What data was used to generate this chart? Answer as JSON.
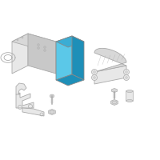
{
  "background_color": "#ffffff",
  "line_color": "#aaaaaa",
  "line_color_dark": "#888888",
  "highlight_color": "#5bc8e8",
  "highlight_mid": "#3aadd4",
  "highlight_dark": "#1e8fb8",
  "gray_light": "#e8e8e8",
  "gray_mid": "#d8d8d8",
  "gray_dark": "#c8c8c8",
  "line_width": 0.6,
  "fig_width": 2.0,
  "fig_height": 2.0,
  "dpi": 100
}
